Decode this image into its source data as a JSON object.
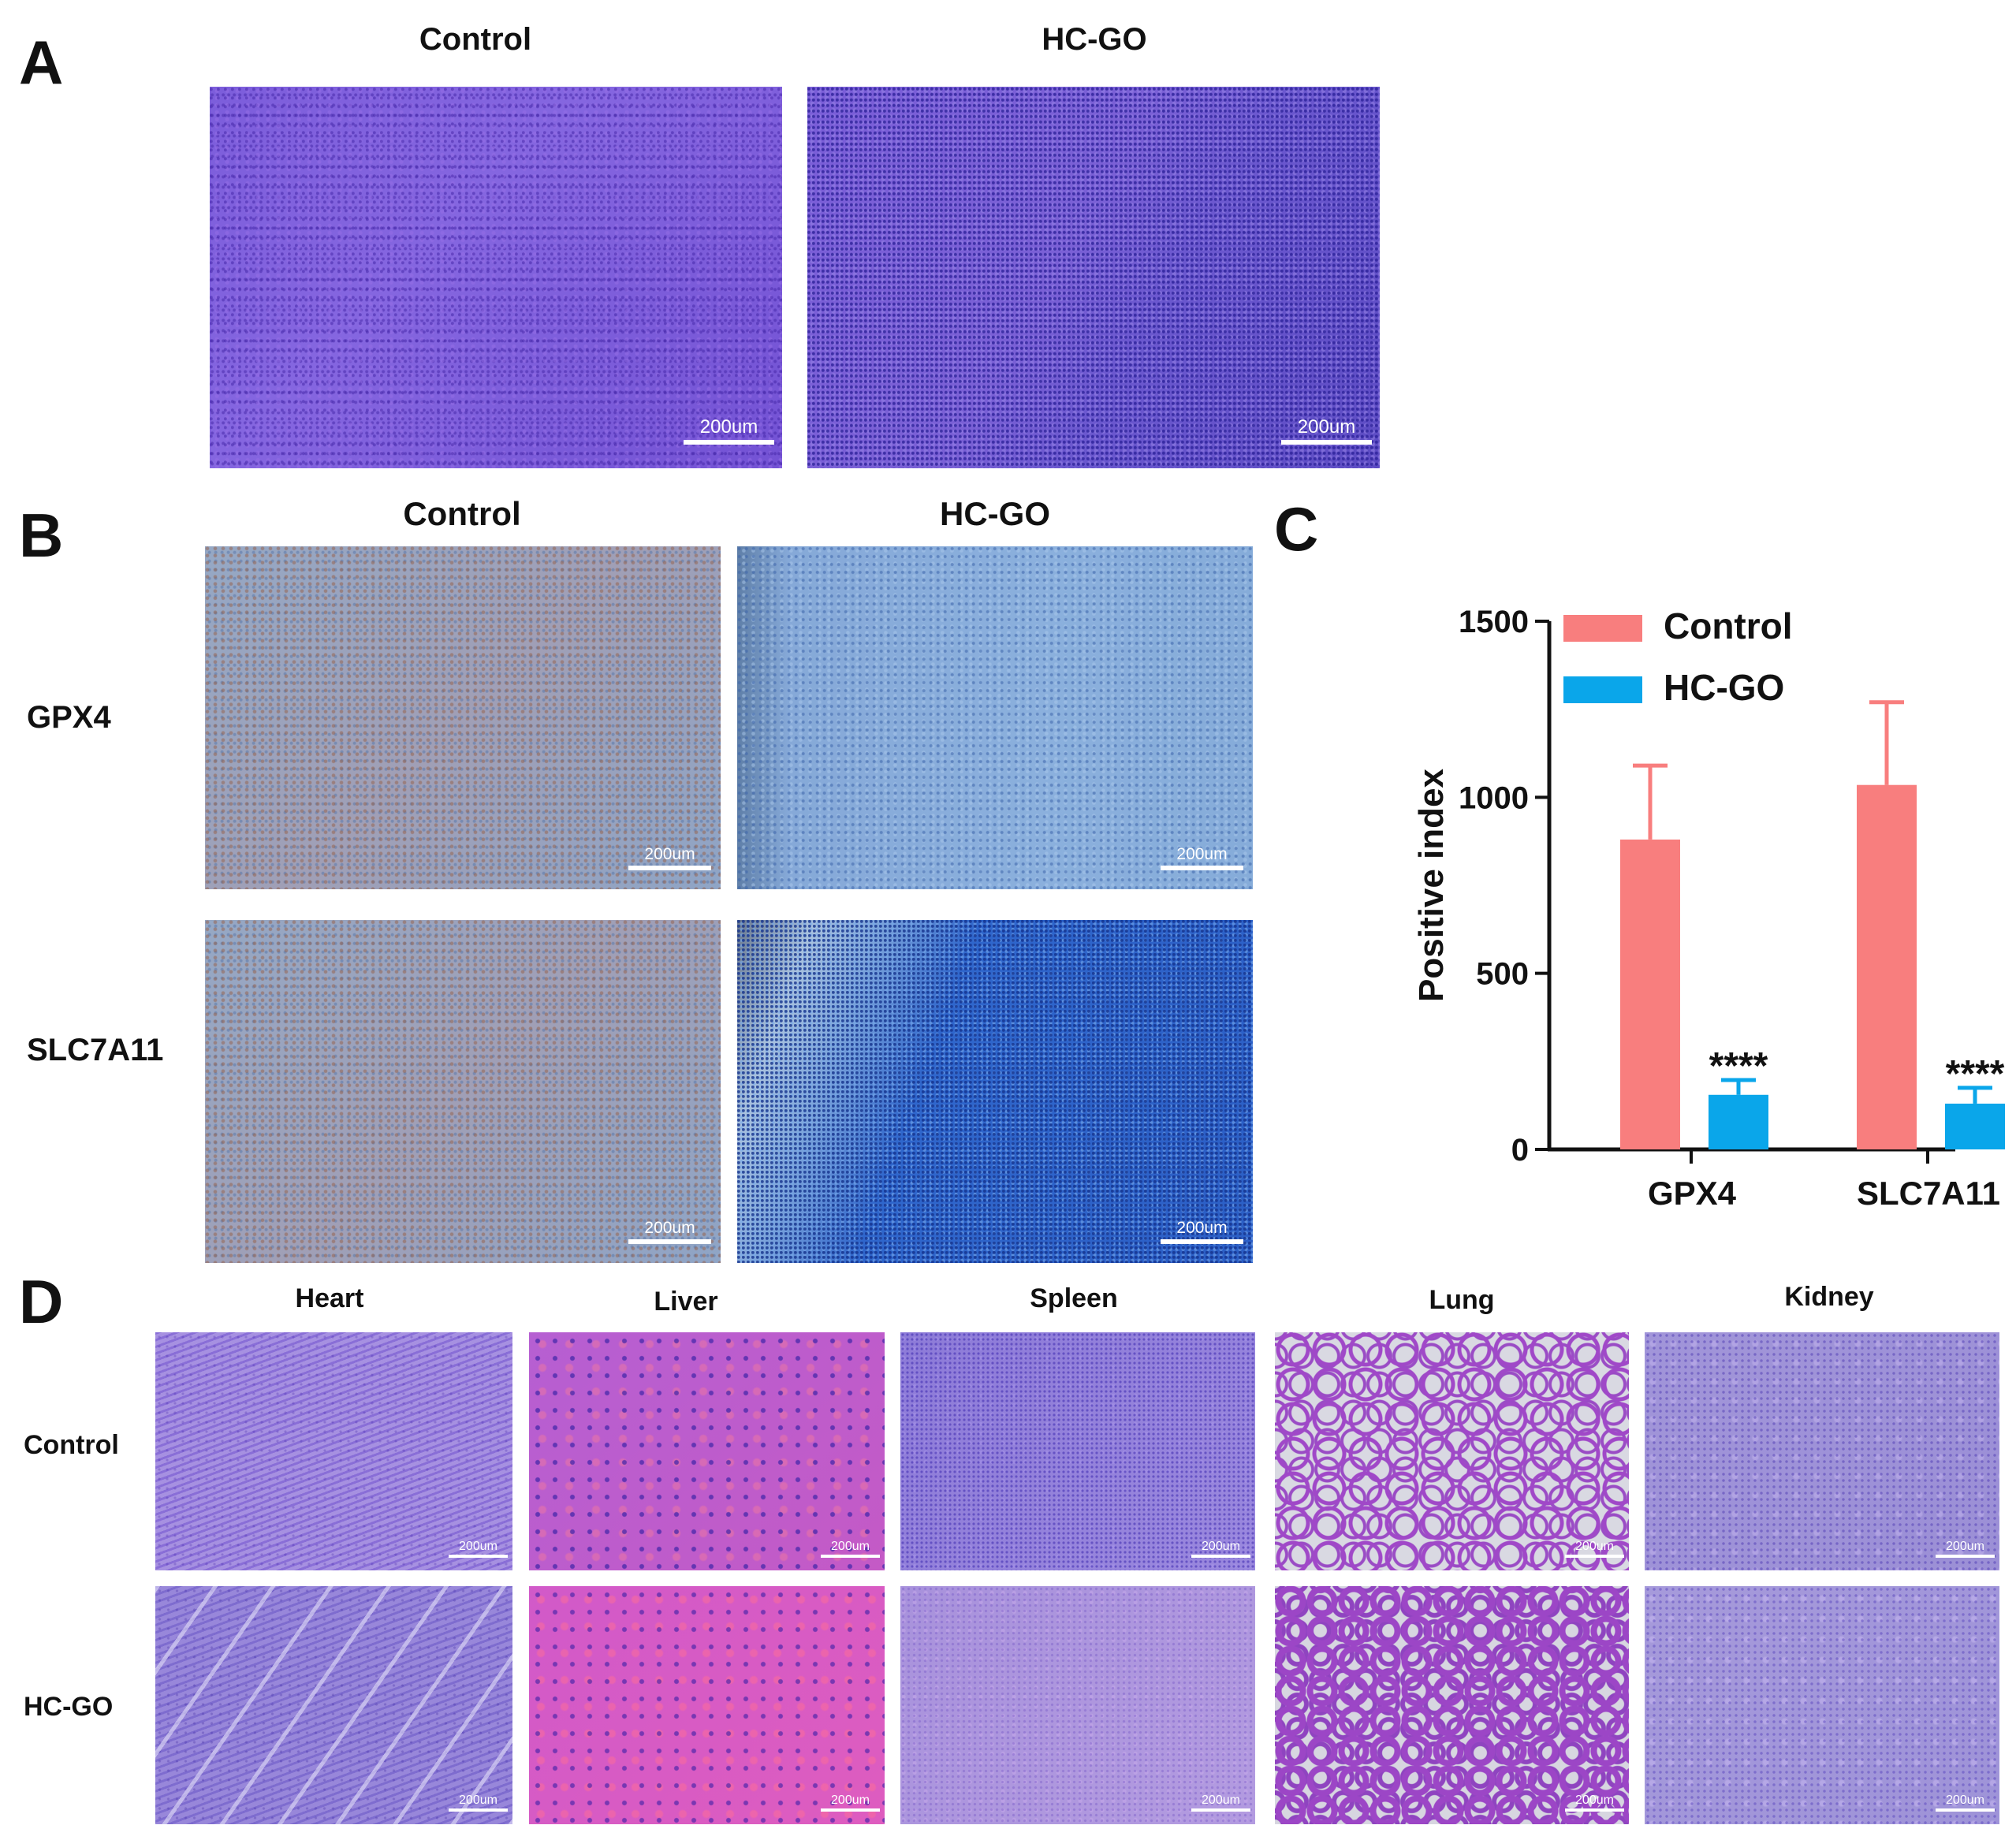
{
  "panels": {
    "A": {
      "letter": "A",
      "columns": [
        "Control",
        "HC-GO"
      ],
      "scale_label": "200um"
    },
    "B": {
      "letter": "B",
      "columns": [
        "Control",
        "HC-GO"
      ],
      "rows": [
        "GPX4",
        "SLC7A11"
      ],
      "scale_label": "200um"
    },
    "C": {
      "letter": "C"
    },
    "D": {
      "letter": "D",
      "columns": [
        "Heart",
        "Liver",
        "Spleen",
        "Lung",
        "Kidney"
      ],
      "rows": [
        "Control",
        "HC-GO"
      ],
      "scale_label": "200um"
    }
  },
  "chart_data": {
    "type": "bar",
    "categories": [
      "GPX4",
      "SLC7A11"
    ],
    "series": [
      {
        "name": "Control",
        "color": "#f87e7e",
        "values": [
          880,
          1035
        ],
        "error": [
          210,
          235
        ]
      },
      {
        "name": "HC-GO",
        "color": "#0aa6ea",
        "values": [
          155,
          130
        ],
        "error": [
          42,
          45
        ]
      }
    ],
    "significance": [
      "****",
      "****"
    ],
    "ylabel": "Positive index",
    "ylim": [
      0,
      1500
    ],
    "yticks": [
      0,
      500,
      1000,
      1500
    ],
    "legend_position": "top"
  }
}
